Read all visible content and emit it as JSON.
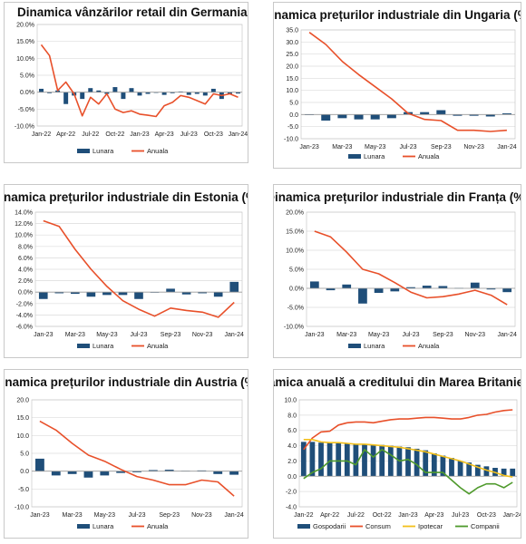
{
  "chart_data": [
    {
      "type": "bar",
      "title": "Dinamica vânzărilor retail din Germania (%)",
      "yticks": [
        "20.0%",
        "15.0%",
        "10.0%",
        "5.0%",
        "0.0%",
        "-5.0%",
        "-10.0%"
      ],
      "ylim": [
        -10,
        20
      ],
      "xticks": [
        "Jan-22",
        "Apr-22",
        "Jul-22",
        "Oct-22",
        "Jan-23",
        "Apr-23",
        "Jul-23",
        "Oct-23",
        "Jan-24"
      ],
      "categories": [
        "Jan-22",
        "Feb-22",
        "Mar-22",
        "Apr-22",
        "May-22",
        "Jun-22",
        "Jul-22",
        "Aug-22",
        "Sep-22",
        "Oct-22",
        "Nov-22",
        "Dec-22",
        "Jan-23",
        "Feb-23",
        "Mar-23",
        "Apr-23",
        "May-23",
        "Jun-23",
        "Jul-23",
        "Aug-23",
        "Sep-23",
        "Oct-23",
        "Nov-23",
        "Dec-23",
        "Jan-24"
      ],
      "series": [
        {
          "name": "Lunara",
          "type": "bar",
          "color": "#1f4e79",
          "values": [
            1.0,
            -0.3,
            0.5,
            -3.5,
            -1.0,
            -2.0,
            1.2,
            0.5,
            -0.5,
            1.5,
            -2.0,
            1.2,
            -1.0,
            -0.5,
            -0.2,
            -0.8,
            -0.3,
            0.2,
            -0.8,
            -0.5,
            -1.0,
            1.0,
            -2.0,
            -0.5,
            -0.4
          ]
        },
        {
          "name": "Anuala",
          "type": "line",
          "color": "#e8502a",
          "values": [
            14.0,
            10.8,
            0.5,
            3.0,
            -0.5,
            -7.0,
            -1.5,
            -3.5,
            -0.5,
            -5.0,
            -6.0,
            -5.5,
            -6.5,
            -6.8,
            -7.2,
            -4.0,
            -3.0,
            -1.0,
            -1.5,
            -2.5,
            -3.5,
            -0.5,
            -1.0,
            -0.5,
            -1.5
          ]
        }
      ]
    },
    {
      "type": "bar",
      "title": "Dinamica prețurilor industriale din Ungaria (%)",
      "yticks": [
        "35.0",
        "30.0",
        "25.0",
        "20.0",
        "15.0",
        "10.0",
        "5.0",
        "0.0",
        "-5.0",
        "-10.0"
      ],
      "ylim": [
        -10,
        35
      ],
      "xticks": [
        "Jan-23",
        "Mar-23",
        "May-23",
        "Jul-23",
        "Sep-23",
        "Nov-23",
        "Jan-24"
      ],
      "categories": [
        "Jan-23",
        "Feb-23",
        "Mar-23",
        "Apr-23",
        "May-23",
        "Jun-23",
        "Jul-23",
        "Aug-23",
        "Sep-23",
        "Oct-23",
        "Nov-23",
        "Dec-23",
        "Jan-24"
      ],
      "series": [
        {
          "name": "Lunara",
          "type": "bar",
          "color": "#1f4e79",
          "values": [
            0.0,
            -2.5,
            -1.5,
            -2.0,
            -2.0,
            -1.5,
            1.0,
            1.0,
            1.8,
            -0.5,
            -0.5,
            -0.8,
            0.5
          ]
        },
        {
          "name": "Anuala",
          "type": "line",
          "color": "#e8502a",
          "values": [
            34.0,
            29.0,
            22.0,
            16.5,
            11.5,
            6.5,
            0.5,
            -2.0,
            -2.5,
            -6.5,
            -6.5,
            -7.0,
            -6.5
          ]
        }
      ]
    },
    {
      "type": "bar",
      "title": "Dinamica prețurilor industriale din Estonia (%)",
      "yticks": [
        "14.0%",
        "12.0%",
        "10.0%",
        "8.0%",
        "6.0%",
        "4.0%",
        "2.0%",
        "0.0%",
        "-2.0%",
        "-4.0%",
        "-6.0%"
      ],
      "ylim": [
        -6,
        14
      ],
      "xticks": [
        "Jan-23",
        "Mar-23",
        "May-23",
        "Jul-23",
        "Sep-23",
        "Nov-23",
        "Jan-24"
      ],
      "categories": [
        "Jan-23",
        "Feb-23",
        "Mar-23",
        "Apr-23",
        "May-23",
        "Jun-23",
        "Jul-23",
        "Aug-23",
        "Sep-23",
        "Oct-23",
        "Nov-23",
        "Dec-23",
        "Jan-24"
      ],
      "series": [
        {
          "name": "Lunara",
          "type": "bar",
          "color": "#1f4e79",
          "values": [
            -1.2,
            -0.2,
            -0.3,
            -0.8,
            -0.5,
            -0.5,
            -1.2,
            0.0,
            0.6,
            -0.4,
            -0.2,
            -0.8,
            1.8
          ]
        },
        {
          "name": "Anuala",
          "type": "line",
          "color": "#e8502a",
          "values": [
            12.5,
            11.5,
            7.5,
            4.0,
            1.0,
            -1.5,
            -3.0,
            -4.2,
            -2.8,
            -3.2,
            -3.5,
            -4.4,
            -1.8
          ]
        }
      ]
    },
    {
      "type": "bar",
      "title": "Dinamica prețurilor industriale din Franța (%)",
      "yticks": [
        "20.0%",
        "15.0%",
        "10.0%",
        "5.0%",
        "0.0%",
        "-5.0%",
        "-10.0%"
      ],
      "ylim": [
        -10,
        20
      ],
      "xticks": [
        "Jan-23",
        "Mar-23",
        "May-23",
        "Jul-23",
        "Sep-23",
        "Nov-23",
        "Jan-24"
      ],
      "categories": [
        "Jan-23",
        "Feb-23",
        "Mar-23",
        "Apr-23",
        "May-23",
        "Jun-23",
        "Jul-23",
        "Aug-23",
        "Sep-23",
        "Oct-23",
        "Nov-23",
        "Dec-23",
        "Jan-24"
      ],
      "series": [
        {
          "name": "Lunara",
          "type": "bar",
          "color": "#1f4e79",
          "values": [
            1.8,
            -0.5,
            1.0,
            -4.0,
            -1.2,
            -0.8,
            0.3,
            0.7,
            0.6,
            0.1,
            1.5,
            -0.3,
            -1.0
          ]
        },
        {
          "name": "Anuala",
          "type": "line",
          "color": "#e8502a",
          "values": [
            15.0,
            13.5,
            9.5,
            5.0,
            3.8,
            1.5,
            -1.0,
            -2.5,
            -2.2,
            -1.5,
            -0.5,
            -1.8,
            -4.3
          ]
        }
      ]
    },
    {
      "type": "bar",
      "title": "Dinamica prețurilor industriale din Austria (%)",
      "yticks": [
        "20.0",
        "15.0",
        "10.0",
        "5.0",
        "0.0",
        "-5.0",
        "-10.0"
      ],
      "ylim": [
        -10,
        20
      ],
      "xticks": [
        "Jan-23",
        "Mar-23",
        "May-23",
        "Jul-23",
        "Sep-23",
        "Nov-23",
        "Jan-24"
      ],
      "categories": [
        "Jan-23",
        "Feb-23",
        "Mar-23",
        "Apr-23",
        "May-23",
        "Jun-23",
        "Jul-23",
        "Aug-23",
        "Sep-23",
        "Oct-23",
        "Nov-23",
        "Dec-23",
        "Jan-24"
      ],
      "series": [
        {
          "name": "Lunara",
          "type": "bar",
          "color": "#1f4e79",
          "values": [
            3.5,
            -1.2,
            -0.8,
            -1.8,
            -1.2,
            -0.5,
            -0.3,
            0.3,
            0.4,
            0.1,
            0.2,
            -0.8,
            -1.0
          ]
        },
        {
          "name": "Anuala",
          "type": "line",
          "color": "#e8502a",
          "values": [
            14.0,
            11.5,
            7.8,
            4.5,
            2.8,
            0.5,
            -1.5,
            -2.5,
            -3.8,
            -3.8,
            -2.5,
            -3.0,
            -7.0
          ]
        }
      ]
    },
    {
      "type": "bar",
      "title": "Dinamica anuală a creditului din Marea Britanie (%)",
      "yticks": [
        "10.0",
        "8.0",
        "6.0",
        "4.0",
        "2.0",
        "0.0",
        "-2.0",
        "-4.0"
      ],
      "ylim": [
        -4,
        10
      ],
      "xticks": [
        "Jan-22",
        "Apr-22",
        "Jul-22",
        "Oct-22",
        "Jan-23",
        "Apr-23",
        "Jul-23",
        "Oct-23",
        "Jan-24"
      ],
      "categories": [
        "Jan-22",
        "Feb-22",
        "Mar-22",
        "Apr-22",
        "May-22",
        "Jun-22",
        "Jul-22",
        "Aug-22",
        "Sep-22",
        "Oct-22",
        "Nov-22",
        "Dec-22",
        "Jan-23",
        "Feb-23",
        "Mar-23",
        "Apr-23",
        "May-23",
        "Jun-23",
        "Jul-23",
        "Aug-23",
        "Sep-23",
        "Oct-23",
        "Nov-23",
        "Dec-23",
        "Jan-24"
      ],
      "series": [
        {
          "name": "Gospodarii",
          "type": "bar",
          "color": "#1f4e79",
          "values": [
            4.5,
            4.5,
            4.4,
            4.4,
            4.4,
            4.3,
            4.2,
            4.2,
            4.1,
            4.1,
            4.0,
            3.9,
            3.8,
            3.6,
            3.4,
            3.0,
            2.7,
            2.4,
            2.0,
            1.8,
            1.5,
            1.3,
            1.1,
            1.0,
            1.0
          ]
        },
        {
          "name": "Consum",
          "type": "line",
          "color": "#e8502a",
          "values": [
            3.5,
            5.0,
            5.8,
            5.9,
            6.7,
            7.0,
            7.1,
            7.1,
            7.0,
            7.2,
            7.4,
            7.5,
            7.5,
            7.6,
            7.7,
            7.7,
            7.6,
            7.5,
            7.5,
            7.7,
            8.0,
            8.1,
            8.4,
            8.6,
            8.7
          ]
        },
        {
          "name": "Ipotecar",
          "type": "line",
          "color": "#f3c01c",
          "values": [
            4.8,
            4.8,
            4.5,
            4.4,
            4.4,
            4.3,
            4.2,
            4.2,
            4.1,
            4.0,
            3.9,
            3.8,
            3.6,
            3.4,
            3.2,
            2.9,
            2.6,
            2.3,
            2.0,
            1.6,
            1.2,
            0.8,
            0.5,
            0.1,
            -0.1
          ]
        },
        {
          "name": "Companii",
          "type": "line",
          "color": "#4f9a2c",
          "values": [
            -0.3,
            0.5,
            1.0,
            2.0,
            2.0,
            2.0,
            1.5,
            3.5,
            2.5,
            3.5,
            2.8,
            2.0,
            2.2,
            1.5,
            0.5,
            0.5,
            0.5,
            -0.5,
            -1.5,
            -2.3,
            -1.5,
            -1.0,
            -1.0,
            -1.5,
            -0.8
          ]
        }
      ]
    }
  ]
}
